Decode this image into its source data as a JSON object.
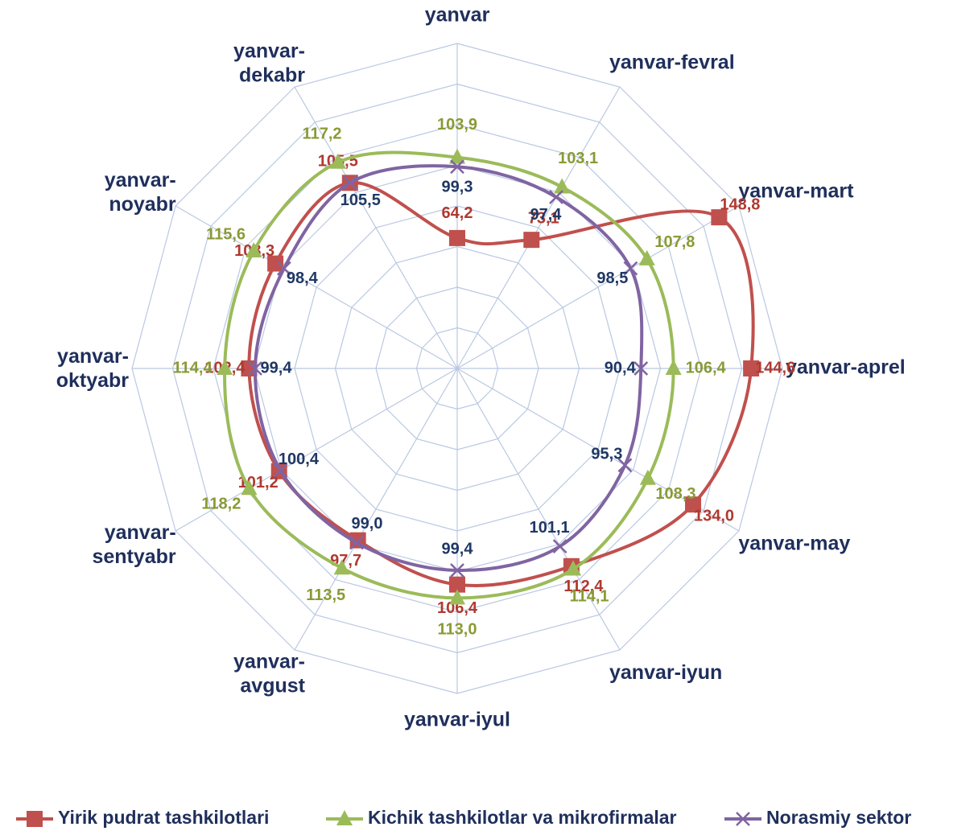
{
  "chart_data": {
    "type": "radar",
    "categories": [
      "yanvar",
      "yanvar-fevral",
      "yanvar-mart",
      "yanvar-aprel",
      "yanvar-may",
      "yanvar-iyun",
      "yanvar-iyul",
      "yanvar-avgust",
      "yanvar-sentyabr",
      "yanvar-oktyabr",
      "yanvar-noyabr",
      "yanvar-dekabr"
    ],
    "ylim": [
      0,
      160
    ],
    "yticks": [
      0,
      20,
      40,
      60,
      80,
      100,
      120,
      140,
      160
    ],
    "grid": true,
    "legend": "bottom",
    "series": [
      {
        "name": "Yirik pudrat tashkilotlari",
        "color": "#c0504d",
        "marker": "square",
        "values": [
          64.2,
          73.1,
          148.8,
          144.6,
          134.0,
          112.4,
          106.4,
          97.7,
          101.2,
          102.4,
          103.3,
          105.5
        ],
        "value_labels": [
          "64,2",
          "73,1",
          "148,8",
          "144,6",
          "134,0",
          "112,4",
          "106,4",
          "97,7",
          "101,2",
          "102,4",
          "103,3",
          "105,5"
        ]
      },
      {
        "name": "Kichik tashkilotlar  va mikrofirmalar",
        "color": "#9bbb59",
        "marker": "triangle",
        "values": [
          103.9,
          103.1,
          107.8,
          106.4,
          108.3,
          114.1,
          113.0,
          113.5,
          118.2,
          114.4,
          115.6,
          117.2
        ],
        "value_labels": [
          "103,9",
          "103,1",
          "107,8",
          "106,4",
          "108,3",
          "114,1",
          "113,0",
          "113,5",
          "118,2",
          "114,4",
          "115,6",
          "117,2"
        ]
      },
      {
        "name": "Norasmiy sektor",
        "color": "#8064a2",
        "marker": "x",
        "values": [
          99.3,
          97.4,
          98.5,
          90.4,
          95.3,
          101.1,
          99.4,
          99.0,
          100.4,
          99.4,
          98.4,
          105.5
        ],
        "value_labels": [
          "99,3",
          "97,4",
          "98,5",
          "90,4",
          "95,3",
          "101,1",
          "99,4",
          "99,0",
          "100,4",
          "99,4",
          "98,4",
          "105,5"
        ]
      }
    ]
  }
}
